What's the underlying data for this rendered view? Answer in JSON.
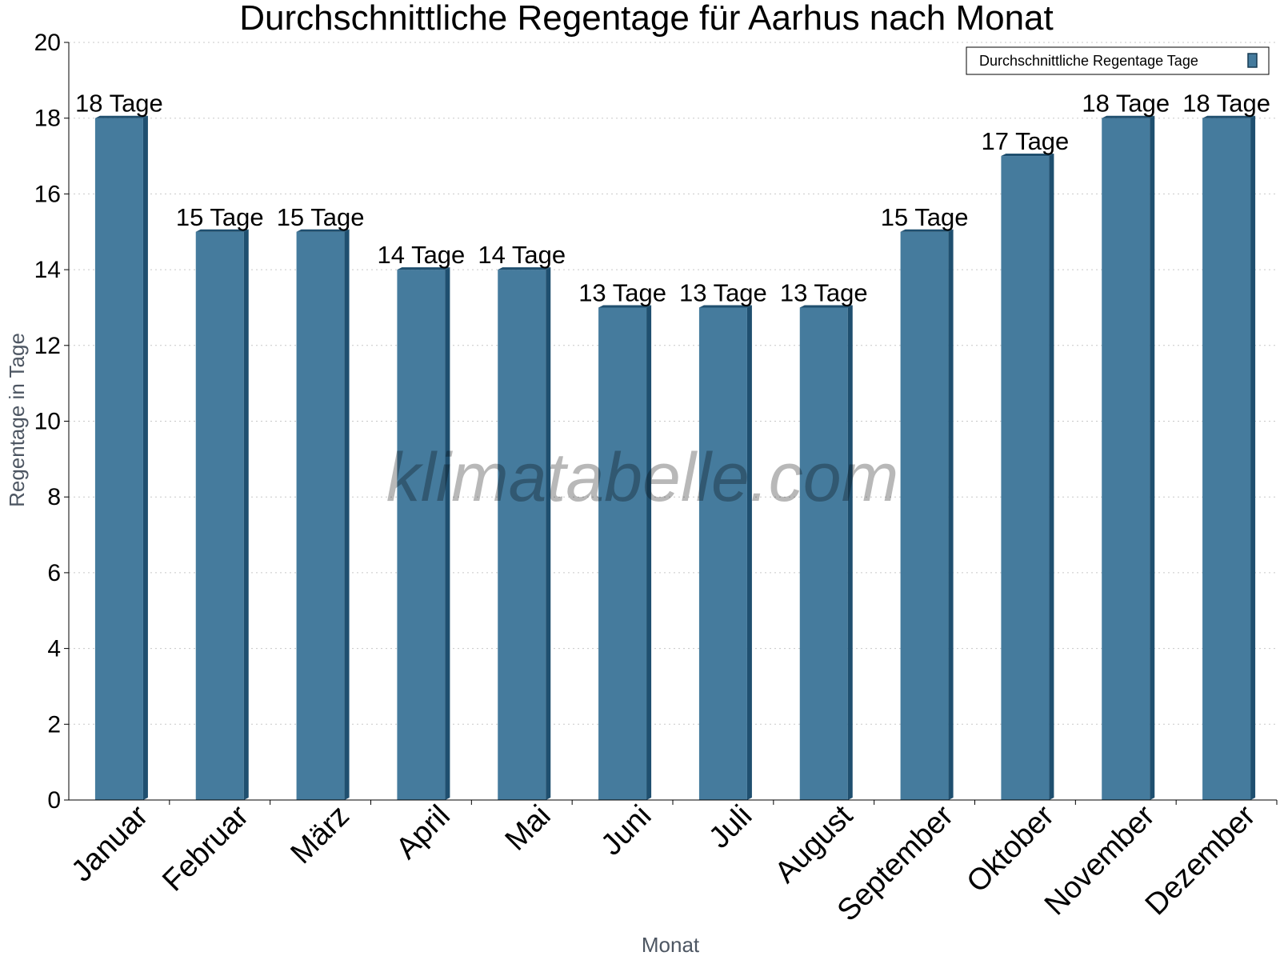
{
  "chart_data": {
    "type": "bar",
    "title": "Durchschnittliche Regentage für Aarhus nach Monat",
    "xlabel": "Monat",
    "ylabel": "Regentage in Tage",
    "ylim": [
      0,
      20
    ],
    "yticks": [
      0,
      2,
      4,
      6,
      8,
      10,
      12,
      14,
      16,
      18,
      20
    ],
    "grid": true,
    "legend_position": "top-right",
    "categories": [
      "Januar",
      "Februar",
      "März",
      "April",
      "Mai",
      "Juni",
      "Juli",
      "August",
      "September",
      "Oktober",
      "November",
      "Dezember"
    ],
    "series": [
      {
        "name": "Durchschnittliche Regentage Tage",
        "values": [
          18,
          15,
          15,
          14,
          14,
          13,
          13,
          13,
          15,
          17,
          18,
          18
        ],
        "color": "#457b9d"
      }
    ],
    "data_labels": [
      "18 Tage",
      "15 Tage",
      "15 Tage",
      "14 Tage",
      "14 Tage",
      "13 Tage",
      "13 Tage",
      "13 Tage",
      "15 Tage",
      "17 Tage",
      "18 Tage",
      "18 Tage"
    ],
    "watermark": "klimatabelle.com"
  }
}
